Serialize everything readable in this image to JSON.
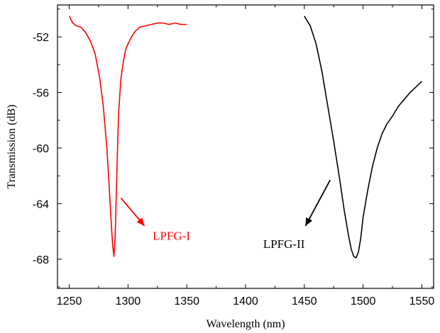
{
  "chart_data": {
    "type": "line",
    "title": "",
    "xlabel": "Wavelength (nm)",
    "ylabel": "Transmission (dB)",
    "xlim": [
      1240,
      1560
    ],
    "ylim": [
      -70.1,
      -49.7
    ],
    "xticks": [
      1250,
      1300,
      1350,
      1400,
      1450,
      1500,
      1550
    ],
    "yticks": [
      -52,
      -56,
      -60,
      -64,
      -68
    ],
    "grid": false,
    "series": [
      {
        "name": "LPFG-I",
        "color": "#ff0000",
        "x": [
          1250,
          1253,
          1256,
          1260,
          1264,
          1268,
          1272,
          1276,
          1279,
          1282,
          1284,
          1286,
          1287,
          1288,
          1289,
          1290,
          1291,
          1292,
          1294,
          1296,
          1298,
          1300,
          1303,
          1306,
          1310,
          1315,
          1320,
          1325,
          1330,
          1335,
          1340,
          1345,
          1350
        ],
        "y": [
          -50.5,
          -51.0,
          -51.2,
          -51.3,
          -51.7,
          -52.3,
          -53.2,
          -55.0,
          -57.0,
          -60.0,
          -62.8,
          -65.8,
          -67.0,
          -67.8,
          -66.5,
          -63.5,
          -60.3,
          -57.5,
          -55.0,
          -53.8,
          -52.9,
          -52.5,
          -52.0,
          -51.6,
          -51.3,
          -51.2,
          -51.1,
          -51.0,
          -51.0,
          -51.1,
          -51.0,
          -51.1,
          -51.1
        ]
      },
      {
        "name": "LPFG-II",
        "color": "#000000",
        "x": [
          1450,
          1455,
          1460,
          1465,
          1470,
          1475,
          1480,
          1484,
          1488,
          1490,
          1492,
          1494,
          1496,
          1498,
          1500,
          1504,
          1508,
          1512,
          1516,
          1520,
          1525,
          1530,
          1535,
          1540,
          1545,
          1550
        ],
        "y": [
          -50.5,
          -51.2,
          -52.5,
          -54.5,
          -57.0,
          -59.5,
          -62.2,
          -64.5,
          -66.5,
          -67.3,
          -67.8,
          -67.9,
          -67.5,
          -66.5,
          -65.0,
          -63.0,
          -61.3,
          -60.0,
          -59.0,
          -58.3,
          -57.7,
          -57.0,
          -56.5,
          -56.0,
          -55.6,
          -55.2
        ]
      }
    ],
    "annotations": [
      {
        "text": "LPFG-I",
        "color": "#ff0000",
        "x": 1321,
        "y": -66.6,
        "arrow_from": [
          1294,
          -63.6
        ],
        "arrow_to": [
          1314,
          -65.6
        ]
      },
      {
        "text": "LPFG-II",
        "color": "#000000",
        "x": 1415,
        "y": -67.2,
        "arrow_from": [
          1472,
          -62.3
        ],
        "arrow_to": [
          1451,
          -65.6
        ]
      }
    ]
  }
}
